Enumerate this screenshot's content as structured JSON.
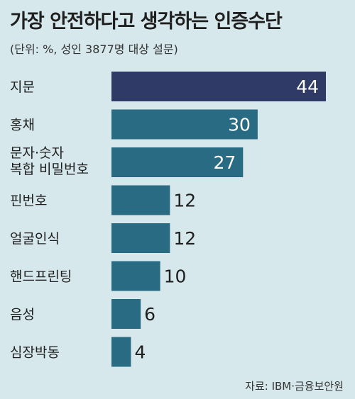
{
  "title": "가장 안전하다고 생각하는 인증수단",
  "subtitle": "(단위: %, 성인 3877명 대상 설문)",
  "source": "자료: IBM·금융보안원",
  "colors": {
    "background": "#d6e8ec",
    "top_bar": "#2f3a66",
    "bar": "#2a6b84"
  },
  "chart_data": {
    "type": "bar",
    "orientation": "horizontal",
    "title": "가장 안전하다고 생각하는 인증수단",
    "subtitle": "(단위: %, 성인 3877명 대상 설문)",
    "categories": [
      "지문",
      "홍채",
      "문자·숫자 복합 비밀번호",
      "핀번호",
      "얼굴인식",
      "핸드프린팅",
      "음성",
      "심장박동"
    ],
    "category_lines": [
      [
        "지문"
      ],
      [
        "홍채"
      ],
      [
        "문자·숫자",
        "복합 비밀번호"
      ],
      [
        "핀번호"
      ],
      [
        "얼굴인식"
      ],
      [
        "핸드프린팅"
      ],
      [
        "음성"
      ],
      [
        "심장박동"
      ]
    ],
    "values": [
      44,
      30,
      27,
      12,
      12,
      10,
      6,
      4
    ],
    "unit": "%",
    "xlim": [
      0,
      44
    ],
    "grid": false,
    "legend": false
  }
}
